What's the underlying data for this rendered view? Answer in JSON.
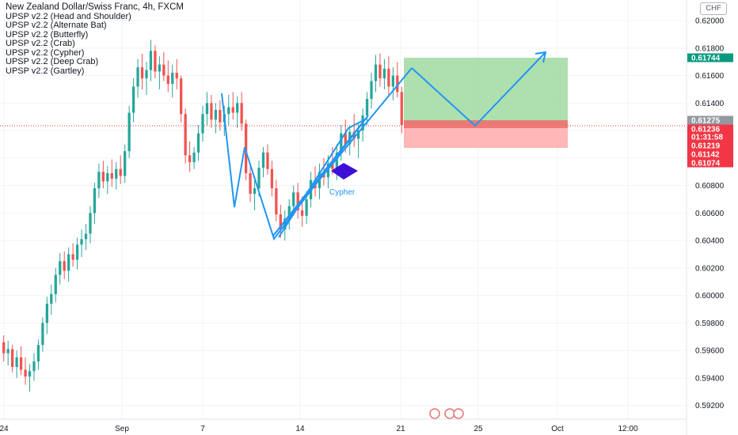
{
  "legend": {
    "title": "New Zealand Dollar/Swiss Franc, 4h, FXCM",
    "indicators": [
      "UPSP v2.2 (Head and Shoulder)",
      "UPSP v2.2 (Alternate Bat)",
      "UPSP v2.2 (Butterfly)",
      "UPSP v2.2 (Crab)",
      "UPSP v2.2 (Cypher)",
      "UPSP v2.2 (Deep Crab)",
      "UPSP v2.2 (Gartley)"
    ]
  },
  "currency": "CHF",
  "colors": {
    "up": "#26a69a",
    "down": "#ef5350",
    "pattern_line": "#2196f3",
    "profit_zone": "#a5dba5",
    "loss_zone": "#ffb3b3",
    "diamond": "#3f0fd6"
  },
  "chart_data": {
    "type": "candlestick",
    "y_axis": {
      "min": 0.591,
      "max": 0.6215,
      "ticks": [
        "0.62000",
        "0.61800",
        "0.61600",
        "0.61400",
        "0.61200",
        "0.61000",
        "0.60800",
        "0.60600",
        "0.60400",
        "0.60200",
        "0.60000",
        "0.59800",
        "0.59600",
        "0.59400",
        "0.59200"
      ]
    },
    "x_axis": {
      "ticks": [
        "24",
        "Sep",
        "7",
        "14",
        "21",
        "25",
        "Oct",
        "12:00"
      ]
    },
    "price_tags": [
      {
        "value": "0.61744",
        "color": "#089981"
      },
      {
        "value": "0.61275",
        "color": "#9598a1"
      },
      {
        "value": "0.61236",
        "color": "#f23645"
      },
      {
        "value": "01:31:58",
        "color": "#f23645"
      },
      {
        "value": "0.61219",
        "color": "#f23645"
      },
      {
        "value": "0.61142",
        "color": "#f23645"
      },
      {
        "value": "0.61074",
        "color": "#f23645"
      }
    ],
    "annotation": "Cypher",
    "candles": [
      [
        0.5966,
        0.5971,
        0.5952,
        0.5958
      ],
      [
        0.5958,
        0.5967,
        0.5949,
        0.5961
      ],
      [
        0.5961,
        0.5964,
        0.5944,
        0.5948
      ],
      [
        0.5948,
        0.596,
        0.594,
        0.5955
      ],
      [
        0.5955,
        0.5963,
        0.5942,
        0.5946
      ],
      [
        0.5946,
        0.5955,
        0.5935,
        0.5941
      ],
      [
        0.5941,
        0.595,
        0.593,
        0.5945
      ],
      [
        0.5945,
        0.5958,
        0.5938,
        0.5952
      ],
      [
        0.5952,
        0.5968,
        0.5946,
        0.5964
      ],
      [
        0.5964,
        0.5984,
        0.5959,
        0.598
      ],
      [
        0.598,
        0.5999,
        0.5972,
        0.5994
      ],
      [
        0.5994,
        0.6008,
        0.5986,
        0.6001
      ],
      [
        0.6001,
        0.602,
        0.5995,
        0.6015
      ],
      [
        0.6015,
        0.6031,
        0.6008,
        0.6025
      ],
      [
        0.6025,
        0.6032,
        0.6012,
        0.6018
      ],
      [
        0.6018,
        0.6035,
        0.601,
        0.603
      ],
      [
        0.603,
        0.6038,
        0.6021,
        0.6026
      ],
      [
        0.6026,
        0.6042,
        0.6019,
        0.6037
      ],
      [
        0.6037,
        0.6048,
        0.6028,
        0.6041
      ],
      [
        0.6041,
        0.6052,
        0.6033,
        0.6045
      ],
      [
        0.6045,
        0.6065,
        0.6038,
        0.606
      ],
      [
        0.606,
        0.6082,
        0.6052,
        0.6078
      ],
      [
        0.6078,
        0.6096,
        0.6071,
        0.609
      ],
      [
        0.609,
        0.6098,
        0.6078,
        0.6083
      ],
      [
        0.6083,
        0.6094,
        0.6074,
        0.6089
      ],
      [
        0.6089,
        0.6099,
        0.6079,
        0.6085
      ],
      [
        0.6085,
        0.6097,
        0.6077,
        0.6092
      ],
      [
        0.6092,
        0.6102,
        0.6081,
        0.6087
      ],
      [
        0.6087,
        0.611,
        0.6082,
        0.6105
      ],
      [
        0.6105,
        0.6138,
        0.61,
        0.6133
      ],
      [
        0.6133,
        0.6158,
        0.6126,
        0.6152
      ],
      [
        0.6152,
        0.6172,
        0.6144,
        0.6166
      ],
      [
        0.6166,
        0.6176,
        0.615,
        0.6158
      ],
      [
        0.6158,
        0.617,
        0.6146,
        0.6164
      ],
      [
        0.6164,
        0.6186,
        0.6156,
        0.6178
      ],
      [
        0.6178,
        0.6182,
        0.6158,
        0.6163
      ],
      [
        0.6163,
        0.6174,
        0.615,
        0.6168
      ],
      [
        0.6168,
        0.6177,
        0.6156,
        0.616
      ],
      [
        0.616,
        0.6171,
        0.6148,
        0.6154
      ],
      [
        0.6154,
        0.6168,
        0.6144,
        0.6162
      ],
      [
        0.6162,
        0.6172,
        0.615,
        0.6158
      ],
      [
        0.6158,
        0.616,
        0.6126,
        0.6132
      ],
      [
        0.6132,
        0.6136,
        0.6096,
        0.6102
      ],
      [
        0.6102,
        0.6112,
        0.609,
        0.6097
      ],
      [
        0.6097,
        0.6108,
        0.6092,
        0.6104
      ],
      [
        0.6104,
        0.6124,
        0.6098,
        0.6118
      ],
      [
        0.6118,
        0.6138,
        0.6112,
        0.6132
      ],
      [
        0.6132,
        0.6148,
        0.6124,
        0.614
      ],
      [
        0.614,
        0.6146,
        0.6122,
        0.6128
      ],
      [
        0.6128,
        0.614,
        0.6118,
        0.6135
      ],
      [
        0.6135,
        0.6142,
        0.612,
        0.6126
      ],
      [
        0.6126,
        0.6138,
        0.6116,
        0.6132
      ],
      [
        0.6132,
        0.6146,
        0.6124,
        0.6137
      ],
      [
        0.6137,
        0.6148,
        0.6128,
        0.6133
      ],
      [
        0.6133,
        0.6145,
        0.6122,
        0.614
      ],
      [
        0.614,
        0.6148,
        0.612,
        0.6125
      ],
      [
        0.6125,
        0.6128,
        0.6084,
        0.6089
      ],
      [
        0.6089,
        0.6096,
        0.6068,
        0.6074
      ],
      [
        0.6074,
        0.6084,
        0.6062,
        0.6078
      ],
      [
        0.6078,
        0.6098,
        0.6072,
        0.6093
      ],
      [
        0.6093,
        0.6108,
        0.6086,
        0.6104
      ],
      [
        0.6104,
        0.611,
        0.6088,
        0.6092
      ],
      [
        0.6092,
        0.6098,
        0.6072,
        0.6078
      ],
      [
        0.6078,
        0.6084,
        0.6054,
        0.6059
      ],
      [
        0.6059,
        0.6066,
        0.6042,
        0.6048
      ],
      [
        0.6048,
        0.6062,
        0.604,
        0.6056
      ],
      [
        0.6056,
        0.607,
        0.6048,
        0.6065
      ],
      [
        0.6065,
        0.608,
        0.6058,
        0.6075
      ],
      [
        0.6075,
        0.6082,
        0.6056,
        0.6062
      ],
      [
        0.6062,
        0.6072,
        0.605,
        0.6058
      ],
      [
        0.6058,
        0.6076,
        0.6052,
        0.607
      ],
      [
        0.607,
        0.609,
        0.6064,
        0.6084
      ],
      [
        0.6084,
        0.6094,
        0.6072,
        0.6078
      ],
      [
        0.6078,
        0.6096,
        0.607,
        0.609
      ],
      [
        0.609,
        0.61,
        0.608,
        0.6086
      ],
      [
        0.6086,
        0.6102,
        0.6078,
        0.6096
      ],
      [
        0.6096,
        0.6108,
        0.6088,
        0.6092
      ],
      [
        0.6092,
        0.611,
        0.6084,
        0.6104
      ],
      [
        0.6104,
        0.6124,
        0.6098,
        0.6118
      ],
      [
        0.6118,
        0.6128,
        0.6104,
        0.611
      ],
      [
        0.611,
        0.6124,
        0.6102,
        0.6119
      ],
      [
        0.6119,
        0.6132,
        0.6108,
        0.6114
      ],
      [
        0.6114,
        0.6126,
        0.61,
        0.612
      ],
      [
        0.612,
        0.6136,
        0.6112,
        0.6131
      ],
      [
        0.6131,
        0.6148,
        0.6124,
        0.6143
      ],
      [
        0.6143,
        0.6162,
        0.6136,
        0.6156
      ],
      [
        0.6156,
        0.6175,
        0.6148,
        0.6168
      ],
      [
        0.6168,
        0.6176,
        0.6152,
        0.6158
      ],
      [
        0.6158,
        0.6172,
        0.615,
        0.6165
      ],
      [
        0.6165,
        0.6174,
        0.6146,
        0.6152
      ],
      [
        0.6152,
        0.6166,
        0.6142,
        0.616
      ],
      [
        0.616,
        0.617,
        0.6144,
        0.6148
      ],
      [
        0.6148,
        0.6152,
        0.6118,
        0.6124
      ]
    ]
  }
}
